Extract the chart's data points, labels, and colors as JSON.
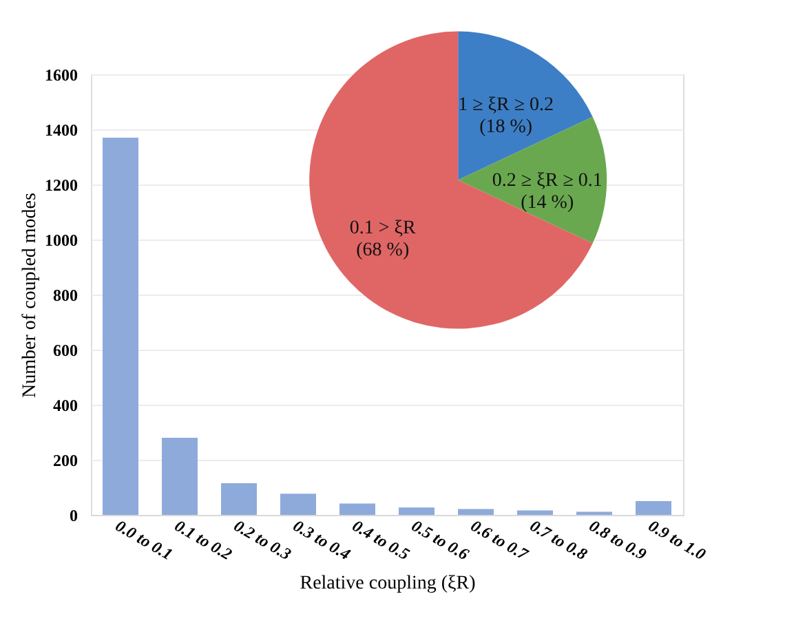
{
  "chart_data": [
    {
      "type": "bar",
      "xlabel": "Relative coupling (ξR)",
      "ylabel": "Number of coupled modes",
      "categories": [
        "0.0 to 0.1",
        "0.1 to 0.2",
        "0.2 to 0.3",
        "0.3 to 0.4",
        "0.4 to 0.5",
        "0.5 to 0.6",
        "0.6 to 0.7",
        "0.7 to 0.8",
        "0.8 to 0.9",
        "0.9 to 1.0"
      ],
      "values": [
        1370,
        280,
        115,
        77,
        41,
        27,
        21,
        16,
        11,
        50
      ],
      "color": "#8eaadb",
      "ylim": [
        0,
        1600
      ],
      "yticks": [
        0,
        200,
        400,
        600,
        800,
        1000,
        1200,
        1400,
        1600
      ],
      "grid": "y"
    },
    {
      "type": "pie",
      "categories": [
        "1 ≥ ξR ≥ 0.2",
        "0.2 ≥ ξR ≥ 0.1",
        "0.1 > ξR"
      ],
      "values": [
        18,
        14,
        68
      ],
      "colors": [
        "#3d7fc6",
        "#6aa84f",
        "#e06666"
      ],
      "value_labels": [
        "(18 %)",
        "(14 %)",
        "(68 %)"
      ]
    }
  ]
}
